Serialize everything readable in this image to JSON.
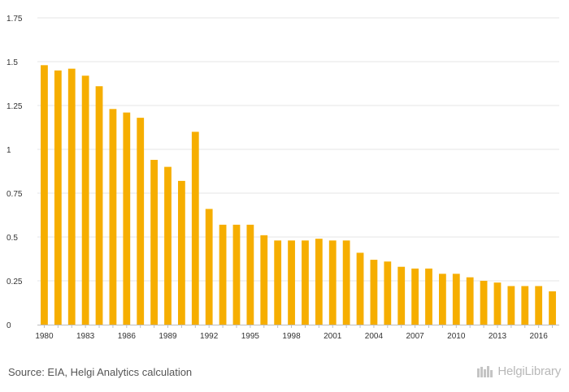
{
  "colors": {
    "bar": "#f6ae00",
    "grid": "#e6e6e6",
    "axis_text": "#333333"
  },
  "source": "Source: EIA, Helgi Analytics calculation",
  "logo": {
    "icon": "library-books-icon",
    "text": "HelgiLibrary"
  },
  "chart_data": {
    "type": "bar",
    "title": "",
    "xlabel": "",
    "ylabel": "",
    "ylim": [
      0,
      1.75
    ],
    "yticks": [
      0,
      0.25,
      0.5,
      0.75,
      1,
      1.25,
      1.5,
      1.75
    ],
    "ytick_labels": [
      "0",
      "0.25",
      "0.5",
      "0.75",
      "1",
      "1.25",
      "1.5",
      "1.75"
    ],
    "grid": true,
    "categories": [
      "1980",
      "1981",
      "1982",
      "1983",
      "1984",
      "1985",
      "1986",
      "1987",
      "1988",
      "1989",
      "1990",
      "1991",
      "1992",
      "1993",
      "1994",
      "1995",
      "1996",
      "1997",
      "1998",
      "1999",
      "2000",
      "2001",
      "2002",
      "2003",
      "2004",
      "2005",
      "2006",
      "2007",
      "2008",
      "2009",
      "2010",
      "2011",
      "2012",
      "2013",
      "2014",
      "2015",
      "2016",
      "2017"
    ],
    "xtick_labels": [
      "1980",
      "1983",
      "1986",
      "1989",
      "1992",
      "1995",
      "1998",
      "2001",
      "2004",
      "2007",
      "2010",
      "2013",
      "2016"
    ],
    "values": [
      1.48,
      1.45,
      1.46,
      1.42,
      1.36,
      1.23,
      1.21,
      1.18,
      0.94,
      0.9,
      0.82,
      1.1,
      0.66,
      0.57,
      0.57,
      0.57,
      0.51,
      0.48,
      0.48,
      0.48,
      0.49,
      0.48,
      0.48,
      0.41,
      0.37,
      0.36,
      0.33,
      0.32,
      0.32,
      0.29,
      0.29,
      0.27,
      0.25,
      0.24,
      0.22,
      0.22,
      0.22,
      0.19
    ]
  }
}
